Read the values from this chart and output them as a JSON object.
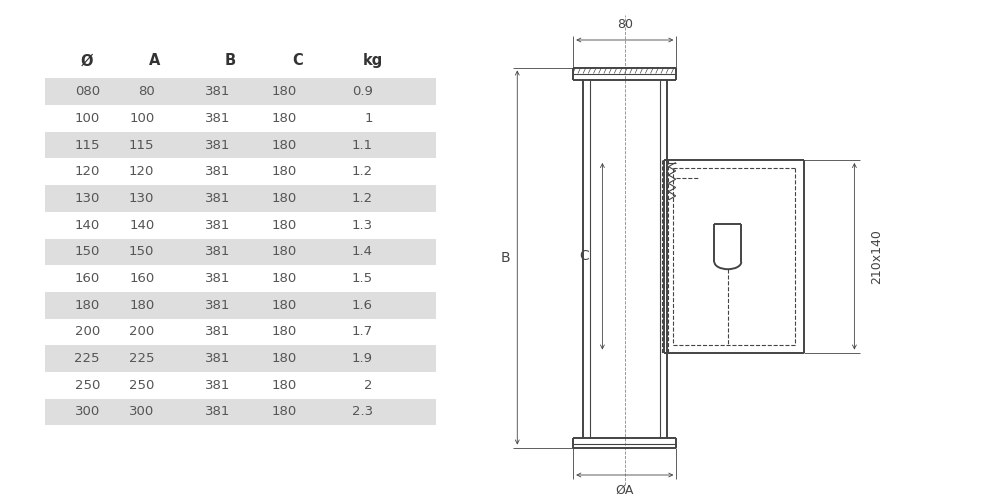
{
  "table_headers": [
    "Ø",
    "A",
    "B",
    "C",
    "kg"
  ],
  "table_rows": [
    [
      "080",
      "80",
      "381",
      "180",
      "0.9"
    ],
    [
      "100",
      "100",
      "381",
      "180",
      "1"
    ],
    [
      "115",
      "115",
      "381",
      "180",
      "1.1"
    ],
    [
      "120",
      "120",
      "381",
      "180",
      "1.2"
    ],
    [
      "130",
      "130",
      "381",
      "180",
      "1.2"
    ],
    [
      "140",
      "140",
      "381",
      "180",
      "1.3"
    ],
    [
      "150",
      "150",
      "381",
      "180",
      "1.4"
    ],
    [
      "160",
      "160",
      "381",
      "180",
      "1.5"
    ],
    [
      "180",
      "180",
      "381",
      "180",
      "1.6"
    ],
    [
      "200",
      "200",
      "381",
      "180",
      "1.7"
    ],
    [
      "225",
      "225",
      "381",
      "180",
      "1.9"
    ],
    [
      "250",
      "250",
      "381",
      "180",
      "2"
    ],
    [
      "300",
      "300",
      "381",
      "180",
      "2.3"
    ]
  ],
  "shaded_rows": [
    0,
    2,
    4,
    6,
    8,
    10,
    12
  ],
  "row_bg_shaded": "#dedede",
  "row_bg_white": "#ffffff",
  "text_color": "#555555",
  "header_color": "#333333",
  "background": "#ffffff",
  "line_color": "#444444",
  "dim_color": "#444444"
}
